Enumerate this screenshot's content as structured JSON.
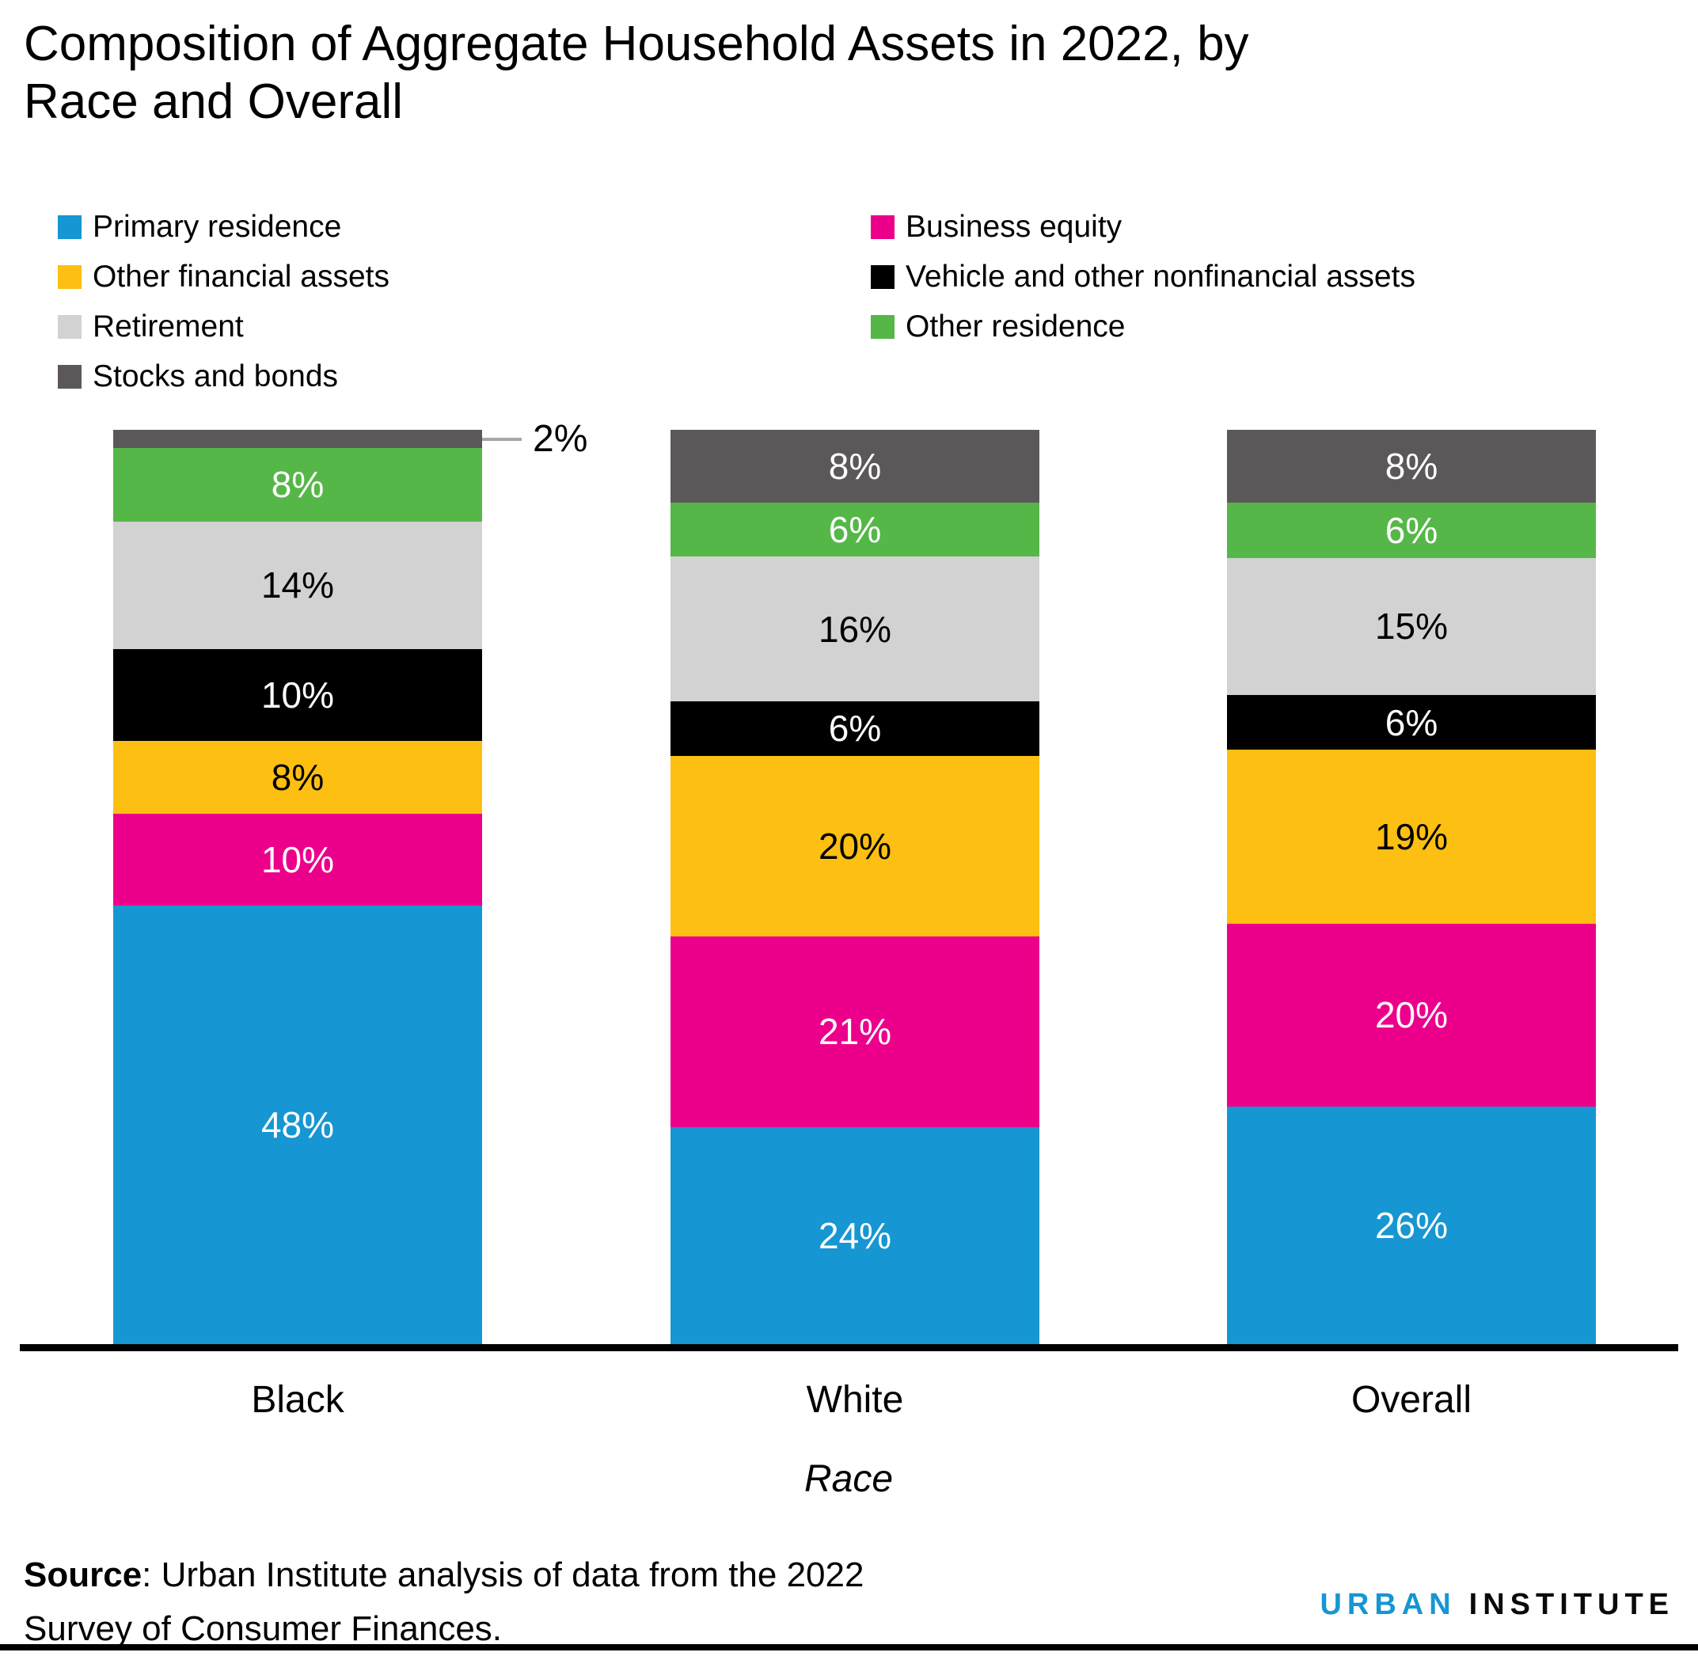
{
  "header": {
    "title_line1": "Composition of Aggregate Household Assets in 2022, by",
    "title_line2": "Race and Overall"
  },
  "chart_data": {
    "type": "bar",
    "variant": "stacked-percent-column",
    "title": "Composition of Aggregate Household Assets in 2022, by Race and Overall",
    "categories": [
      "Black",
      "White",
      "Overall"
    ],
    "series": [
      {
        "name": "Primary residence",
        "color": "#1696d2",
        "label_color": "#ffffff",
        "values": [
          48,
          24,
          26
        ]
      },
      {
        "name": "Business equity",
        "color": "#ec008b",
        "label_color": "#ffffff",
        "values": [
          10,
          21,
          20
        ]
      },
      {
        "name": "Other financial assets",
        "color": "#fdbf11",
        "label_color": "#000000",
        "values": [
          8,
          20,
          19
        ]
      },
      {
        "name": "Vehicle and other nonfinancial assets",
        "color": "#000000",
        "label_color": "#ffffff",
        "values": [
          10,
          6,
          6
        ]
      },
      {
        "name": "Retirement",
        "color": "#d2d2d2",
        "label_color": "#000000",
        "values": [
          14,
          16,
          15
        ]
      },
      {
        "name": "Other residence",
        "color": "#55b748",
        "label_color": "#ffffff",
        "values": [
          8,
          6,
          6
        ]
      },
      {
        "name": "Stocks and bonds",
        "color": "#5c5859",
        "label_color": "#ffffff",
        "values": [
          2,
          8,
          8
        ]
      }
    ],
    "stack_order": "bottom-to-top",
    "unit": "%",
    "xlabel": "Race",
    "ylim": [
      0,
      100
    ],
    "grid": false,
    "value_labels": "inside-center",
    "legend_position": "top",
    "legend_columns": 2,
    "axis_line_color": "#000000",
    "callout": {
      "category": "Black",
      "series": "Stocks and bonds",
      "line_color": "#a6a6a6"
    }
  },
  "footer": {
    "source_prefix": "Source",
    "source_line1": ": Urban Institute analysis of data from the 2022",
    "source_line2": "Survey of Consumer Finances.",
    "logo_part1": "URBAN",
    "logo_part2": "INSTITUTE",
    "logo_urban_color": "#1696d2",
    "logo_institute_color": "#0a0a0a",
    "bottom_strip_color": "#000000"
  }
}
